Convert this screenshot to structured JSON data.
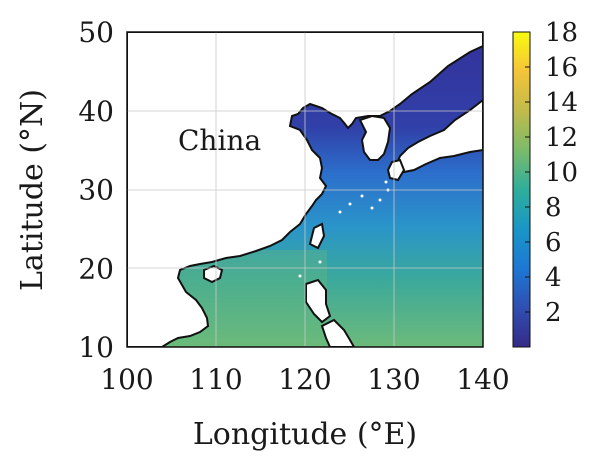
{
  "map": {
    "xlabel": "Longitude (°E)",
    "ylabel": "Latitude (°N)",
    "xlim": [
      100,
      140
    ],
    "ylim": [
      10,
      50
    ],
    "xticks": [
      100,
      110,
      120,
      130,
      140
    ],
    "yticks": [
      10,
      20,
      30,
      40,
      50
    ],
    "grid": true,
    "place_label": "China",
    "colorbar": {
      "min": 0,
      "max": 18,
      "ticks": [
        2,
        4,
        6,
        8,
        10,
        12,
        14,
        16,
        18
      ],
      "colormap": "parula",
      "stops": [
        "#352a87",
        "#2f4fb1",
        "#1d78d4",
        "#1a96c6",
        "#2fae9b",
        "#7bbb6a",
        "#c1bb4a",
        "#f4c43a",
        "#f9fb0e"
      ]
    },
    "sea_colors": {
      "north": "#33319a",
      "mid": "#2c6fcc",
      "south": "#3aa89c",
      "southwest": "#5fb784"
    },
    "land_color": "#ffffff",
    "coast_color": "#111111"
  }
}
